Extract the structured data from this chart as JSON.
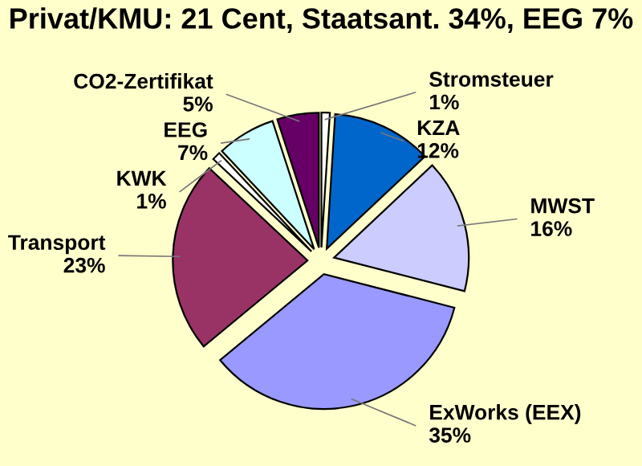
{
  "chart_data": {
    "type": "pie",
    "title": "Privat/KMU: 21 Cent, Staatsant. 34%, EEG 7%",
    "categories": [
      "Stromsteuer",
      "KZA",
      "MWST",
      "ExWorks (EEX)",
      "Transport",
      "KWK",
      "EEG",
      "CO2-Zertifikat"
    ],
    "values": [
      1,
      12,
      16,
      35,
      23,
      1,
      7,
      5
    ],
    "colors": [
      "#ffffff",
      "#0066cc",
      "#ccccff",
      "#9999ff",
      "#993366",
      "#ffffff",
      "#ccffff",
      "#660066"
    ],
    "value_labels": [
      "1%",
      "12%",
      "16%",
      "35%",
      "23%",
      "1%",
      "7%",
      "5%"
    ]
  }
}
